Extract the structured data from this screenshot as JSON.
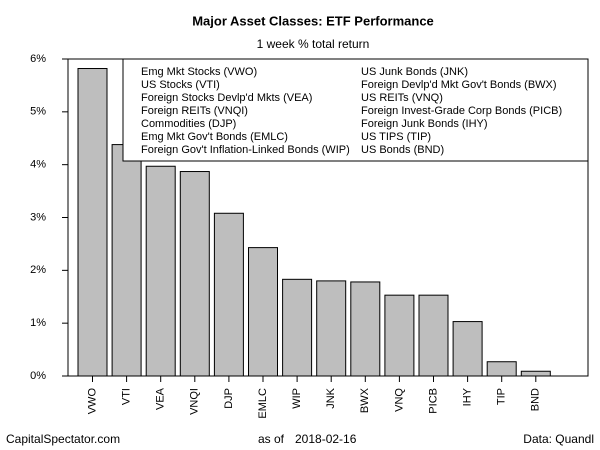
{
  "chart_data": {
    "type": "bar",
    "title": "Major Asset Classes: ETF Performance",
    "subtitle": "1 week % total return",
    "categories": [
      "VWO",
      "VTI",
      "VEA",
      "VNQI",
      "DJP",
      "EMLC",
      "WIP",
      "JNK",
      "BWX",
      "VNQ",
      "PICB",
      "IHY",
      "TIP",
      "BND"
    ],
    "values": [
      5.82,
      4.38,
      3.97,
      3.87,
      3.08,
      2.43,
      1.83,
      1.8,
      1.78,
      1.53,
      1.53,
      1.03,
      0.27,
      0.09
    ],
    "color": "#bebebe",
    "ylim": [
      0,
      6
    ],
    "yticks": [
      {
        "value": 0,
        "label": "0%"
      },
      {
        "value": 1,
        "label": "1%"
      },
      {
        "value": 2,
        "label": "2%"
      },
      {
        "value": 3,
        "label": "3%"
      },
      {
        "value": 4,
        "label": "4%"
      },
      {
        "value": 5,
        "label": "5%"
      },
      {
        "value": 6,
        "label": "6%"
      }
    ],
    "grid": false,
    "legend_entries": [
      "Emg Mkt Stocks (VWO)",
      "US Stocks (VTI)",
      "Foreign Stocks Devlp'd Mkts (VEA)",
      "Foreign REITs (VNQI)",
      "Commodities (DJP)",
      "Emg Mkt Gov't Bonds (EMLC)",
      "Foreign Gov't Inflation-Linked Bonds (WIP)",
      "US Junk Bonds (JNK)",
      "Foreign Devlp'd Mkt Gov't Bonds (BWX)",
      "US REITs (VNQ)",
      "Foreign Invest-Grade Corp Bonds (PICB)",
      "Foreign Junk Bonds (IHY)",
      "US TIPS (TIP)",
      "US Bonds (BND)"
    ],
    "legend": "top-right",
    "footer_left": "CapitalSpectator.com",
    "footer_as_of": "as of",
    "footer_date": "2018-02-16",
    "footer_right": "Data: Quandl"
  }
}
